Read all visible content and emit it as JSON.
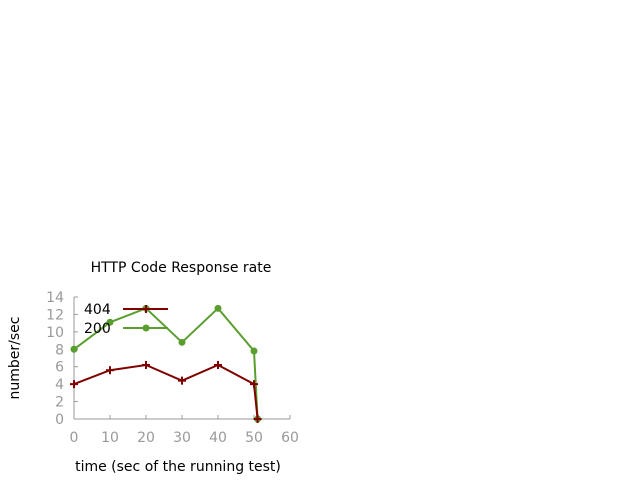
{
  "chart_data": {
    "type": "line",
    "title": "HTTP Code Response rate",
    "xlabel": "time (sec of the running test)",
    "ylabel": "number/sec",
    "xlim": [
      0,
      60
    ],
    "ylim": [
      0,
      14
    ],
    "xticks": [
      0,
      10,
      20,
      30,
      40,
      50,
      60
    ],
    "yticks": [
      0,
      2,
      4,
      6,
      8,
      10,
      12,
      14
    ],
    "grid": false,
    "legend_position": "top-left",
    "series": [
      {
        "name": "404",
        "color": "#800000",
        "marker": "plus",
        "points": [
          [
            0,
            4.0
          ],
          [
            10,
            5.6
          ],
          [
            20,
            6.2
          ],
          [
            30,
            4.4
          ],
          [
            40,
            6.2
          ],
          [
            50,
            4.0
          ],
          [
            51,
            0
          ]
        ]
      },
      {
        "name": "200",
        "color": "#5a9e2f",
        "marker": "dot",
        "points": [
          [
            0,
            8.0
          ],
          [
            10,
            11.1
          ],
          [
            20,
            12.7
          ],
          [
            30,
            8.8
          ],
          [
            40,
            12.7
          ],
          [
            50,
            7.8
          ],
          [
            51,
            0
          ]
        ]
      }
    ]
  }
}
